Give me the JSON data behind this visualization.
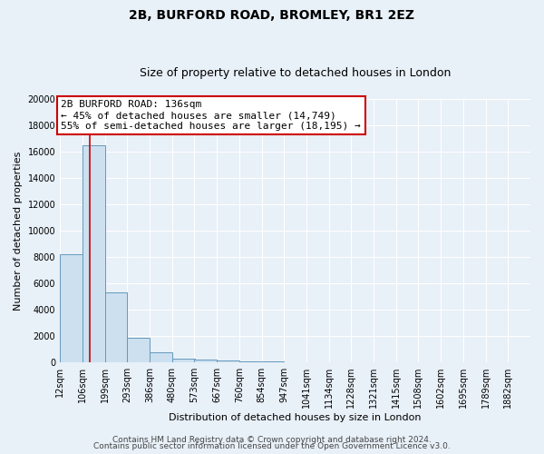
{
  "title": "2B, BURFORD ROAD, BROMLEY, BR1 2EZ",
  "subtitle": "Size of property relative to detached houses in London",
  "xlabel": "Distribution of detached houses by size in London",
  "ylabel": "Number of detached properties",
  "footnote1": "Contains HM Land Registry data © Crown copyright and database right 2024.",
  "footnote2": "Contains public sector information licensed under the Open Government Licence v3.0.",
  "bar_labels": [
    "12sqm",
    "106sqm",
    "199sqm",
    "293sqm",
    "386sqm",
    "480sqm",
    "573sqm",
    "667sqm",
    "760sqm",
    "854sqm",
    "947sqm",
    "1041sqm",
    "1134sqm",
    "1228sqm",
    "1321sqm",
    "1415sqm",
    "1508sqm",
    "1602sqm",
    "1695sqm",
    "1789sqm",
    "1882sqm"
  ],
  "bar_values": [
    8200,
    16500,
    5300,
    1850,
    780,
    310,
    200,
    130,
    80,
    50,
    30,
    20,
    15,
    12,
    10,
    8,
    7,
    6,
    5,
    4,
    3
  ],
  "bar_color": "#cce0f0",
  "bar_edge_color": "#6699bb",
  "property_size": 136,
  "vline_color": "#cc0000",
  "annotation_line1": "2B BURFORD ROAD: 136sqm",
  "annotation_line2": "← 45% of detached houses are smaller (14,749)",
  "annotation_line3": "55% of semi-detached houses are larger (18,195) →",
  "annotation_box_facecolor": "#ffffff",
  "annotation_box_edgecolor": "#cc0000",
  "ylim": [
    0,
    20000
  ],
  "yticks": [
    0,
    2000,
    4000,
    6000,
    8000,
    10000,
    12000,
    14000,
    16000,
    18000,
    20000
  ],
  "bg_color": "#e8f0f8",
  "plot_bg_color": "#e8f0f8",
  "grid_color": "#ffffff",
  "title_fontsize": 10,
  "subtitle_fontsize": 9,
  "xlabel_fontsize": 8,
  "ylabel_fontsize": 8,
  "tick_fontsize": 7,
  "annotation_fontsize": 8,
  "footnote_fontsize": 6.5
}
